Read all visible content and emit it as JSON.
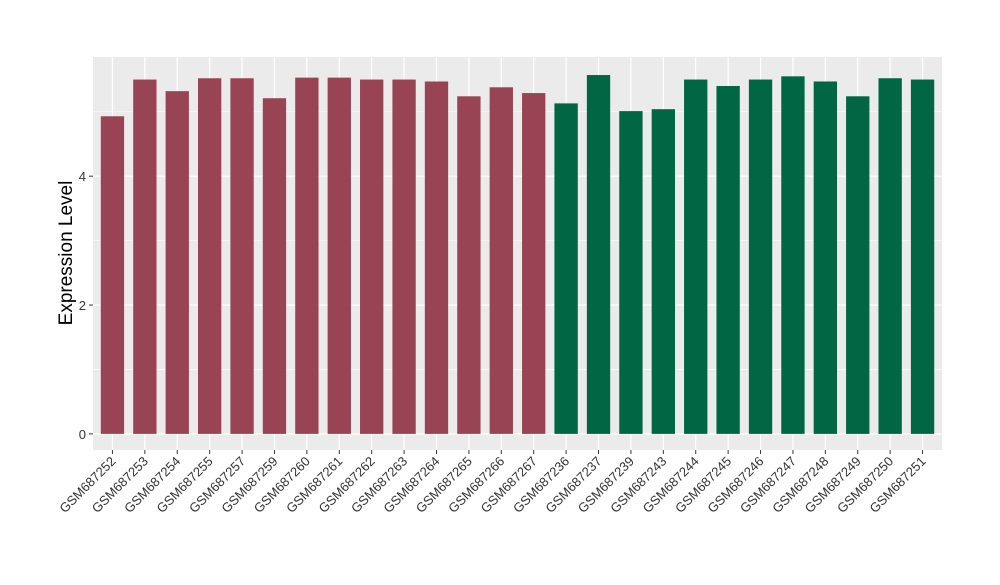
{
  "chart_data": {
    "type": "bar",
    "title": "",
    "xlabel": "",
    "ylabel": "Expression Level",
    "ylim": [
      -0.25,
      5.85
    ],
    "yticks": [
      0,
      2,
      4
    ],
    "grid": true,
    "categories": [
      "GSM687252",
      "GSM687253",
      "GSM687254",
      "GSM687255",
      "GSM687257",
      "GSM687259",
      "GSM687260",
      "GSM687261",
      "GSM687262",
      "GSM687263",
      "GSM687264",
      "GSM687265",
      "GSM687266",
      "GSM687267",
      "GSM687236",
      "GSM687237",
      "GSM687239",
      "GSM687243",
      "GSM687244",
      "GSM687245",
      "GSM687246",
      "GSM687247",
      "GSM687248",
      "GSM687249",
      "GSM687250",
      "GSM687251"
    ],
    "values": [
      4.93,
      5.5,
      5.32,
      5.52,
      5.52,
      5.21,
      5.53,
      5.53,
      5.5,
      5.5,
      5.47,
      5.24,
      5.38,
      5.29,
      5.13,
      5.57,
      5.01,
      5.04,
      5.5,
      5.4,
      5.5,
      5.55,
      5.47,
      5.24,
      5.52,
      5.5
    ],
    "groups": [
      0,
      0,
      0,
      0,
      0,
      0,
      0,
      0,
      0,
      0,
      0,
      0,
      0,
      0,
      1,
      1,
      1,
      1,
      1,
      1,
      1,
      1,
      1,
      1,
      1,
      1
    ],
    "group_colors": [
      "#994455",
      "#006644"
    ],
    "panel_background": "#EBEBEB"
  }
}
